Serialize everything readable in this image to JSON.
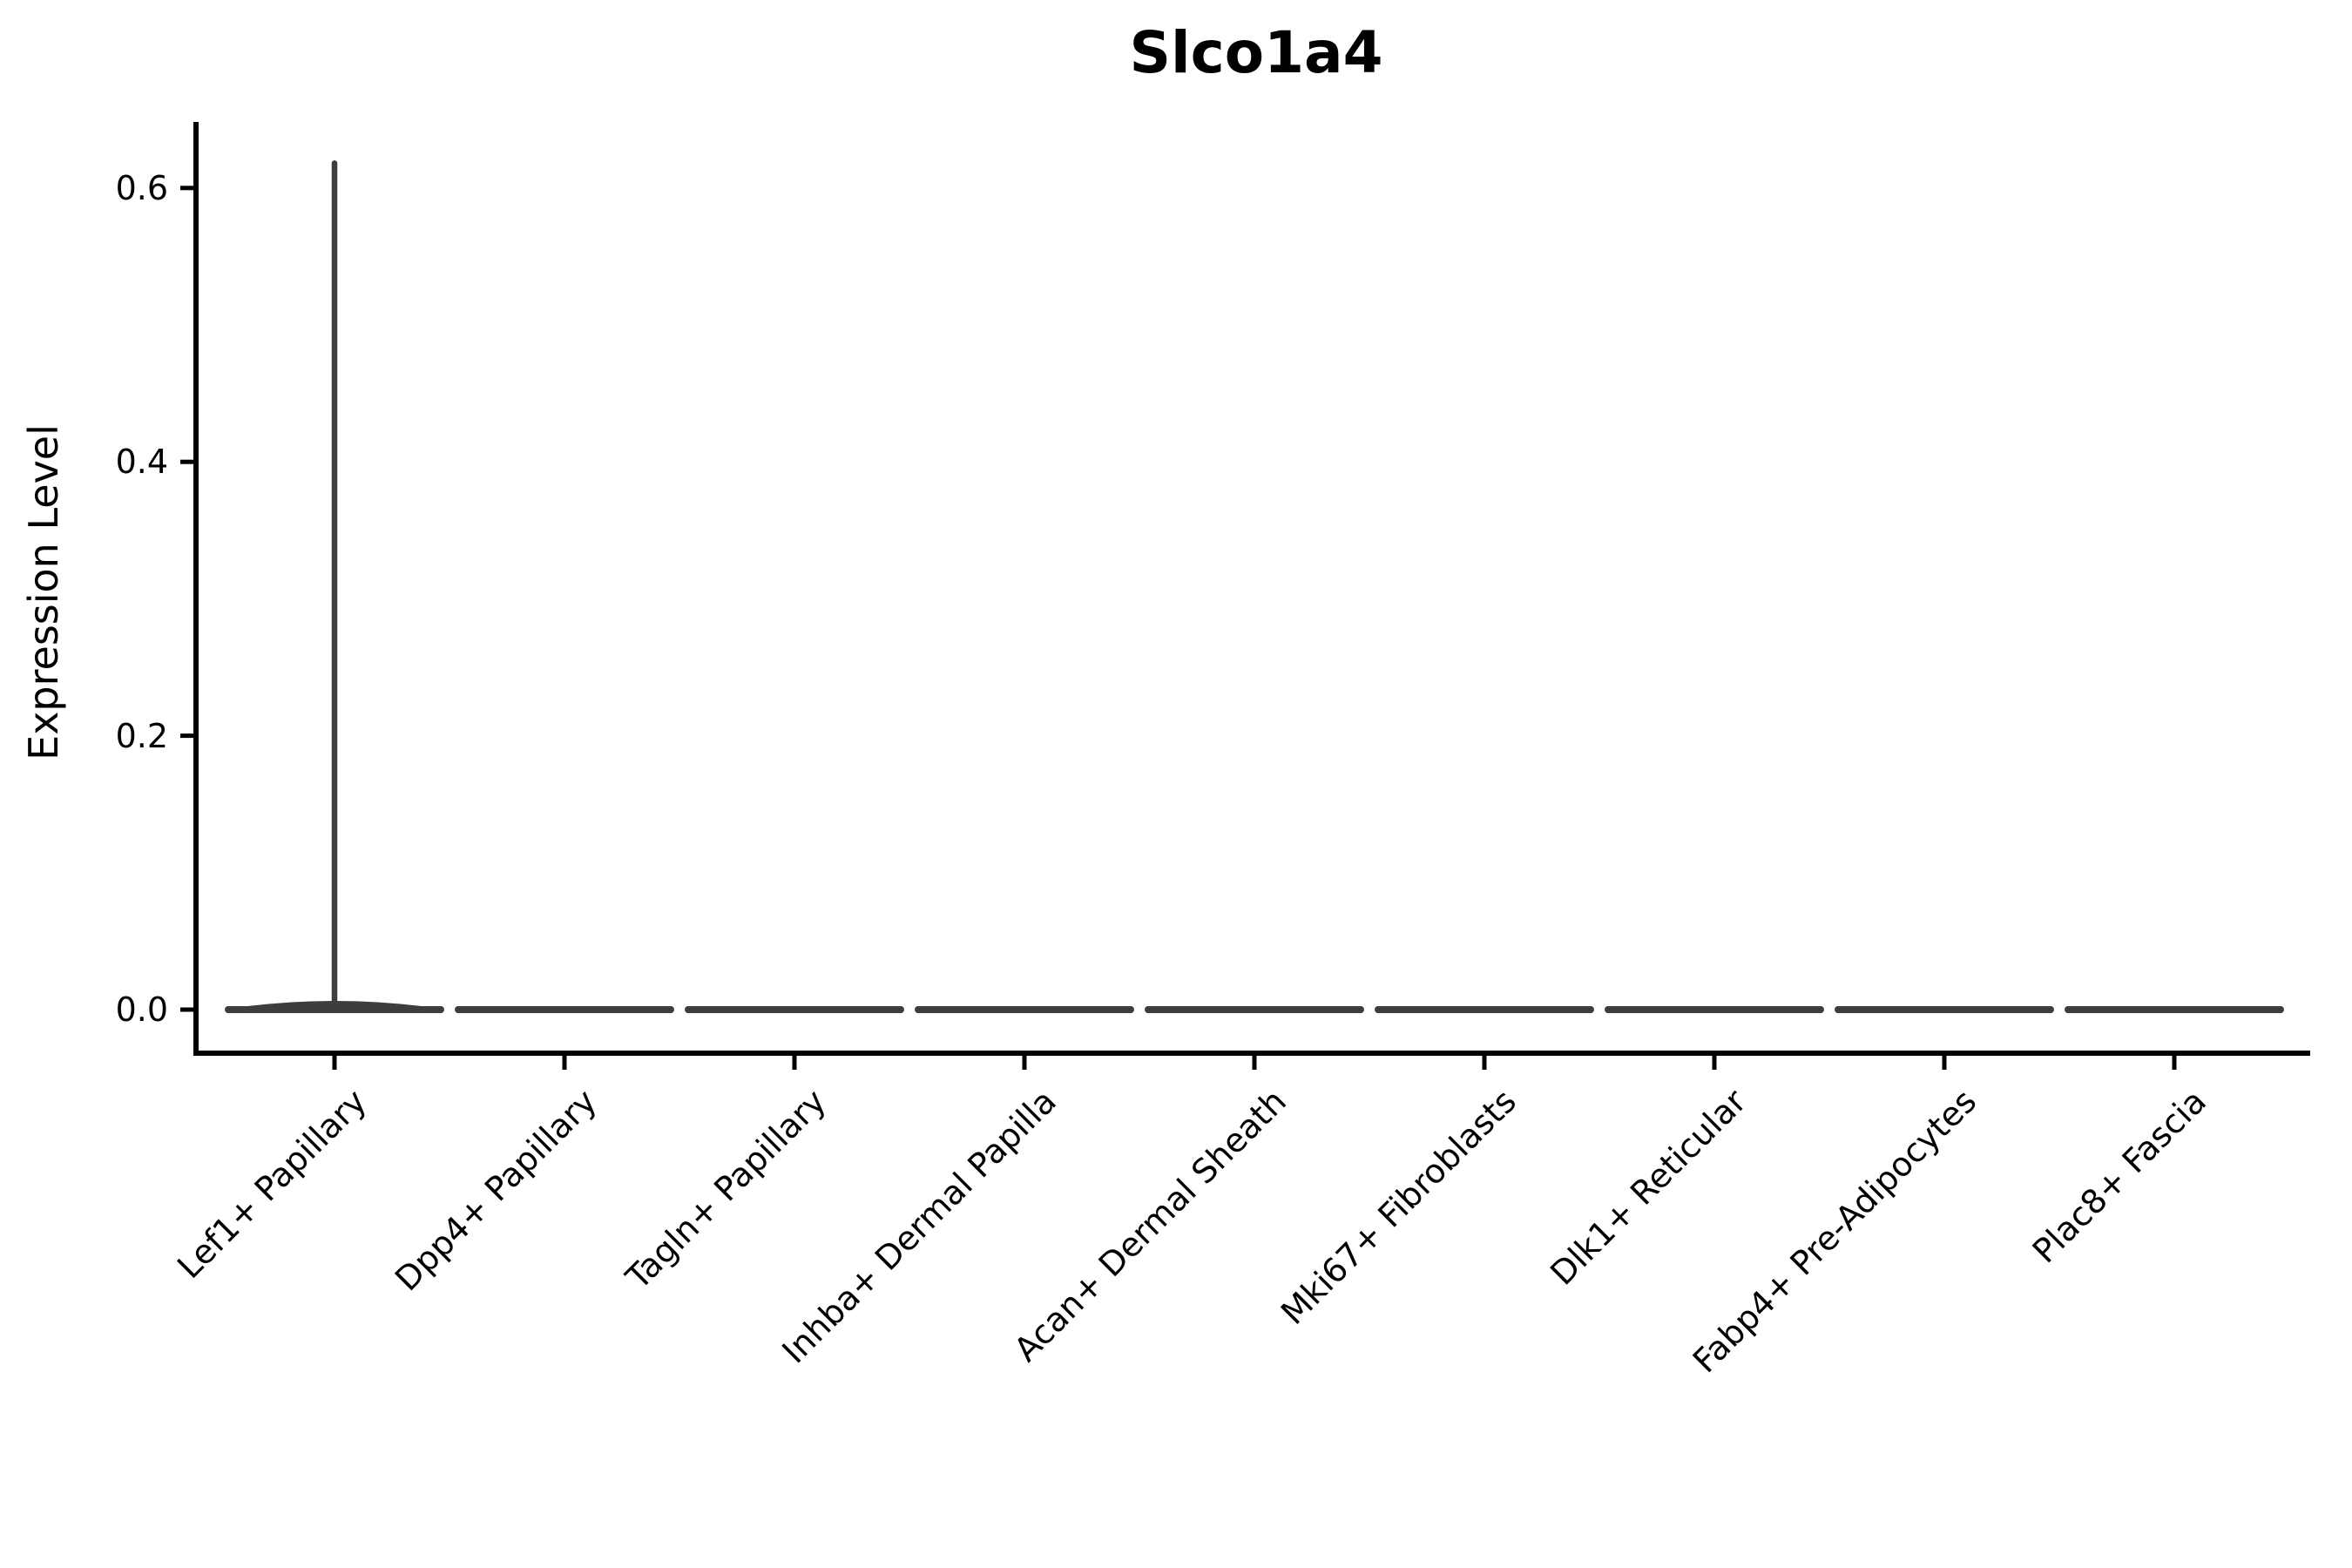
{
  "chart_data": {
    "type": "violin",
    "title": "Slco1a4",
    "ylabel": "Expression Level",
    "xlabel": "",
    "categories": [
      "Lef1+ Papillary",
      "Dpp4+ Papillary",
      "Tagln+ Papillary",
      "Inhba+ Dermal Papilla",
      "Acan+ Dermal Sheath",
      "Mki67+ Fibroblasts",
      "Dlk1+ Reticular",
      "Fabp4+ Pre-Adipocytes",
      "Plac8+ Fascia"
    ],
    "yticks": [
      0.0,
      0.2,
      0.4,
      0.6
    ],
    "ytick_labels": [
      "0.0",
      "0.2",
      "0.4",
      "0.6"
    ],
    "ylim": [
      -0.03,
      0.65
    ],
    "grid": false,
    "legend": "none",
    "x_tick_rotation_deg": 45,
    "violins": [
      {
        "label": "Lef1+ Papillary",
        "baseline_value": 0.0,
        "max": 0.62
      },
      {
        "label": "Dpp4+ Papillary",
        "baseline_value": 0.0,
        "max": 0.0
      },
      {
        "label": "Tagln+ Papillary",
        "baseline_value": 0.0,
        "max": 0.0
      },
      {
        "label": "Inhba+ Dermal Papilla",
        "baseline_value": 0.0,
        "max": 0.0
      },
      {
        "label": "Acan+ Dermal Sheath",
        "baseline_value": 0.0,
        "max": 0.0
      },
      {
        "label": "Mki67+ Fibroblasts",
        "baseline_value": 0.0,
        "max": 0.0
      },
      {
        "label": "Dlk1+ Reticular",
        "baseline_value": 0.0,
        "max": 0.0
      },
      {
        "label": "Fabp4+ Pre-Adipocytes",
        "baseline_value": 0.0,
        "max": 0.0
      },
      {
        "label": "Plac8+ Fascia",
        "baseline_value": 0.0,
        "max": 0.0
      }
    ],
    "colors": {
      "violin_stroke": "#3d3d3d",
      "axis": "#000000",
      "text": "#000000",
      "background": "#ffffff"
    }
  }
}
